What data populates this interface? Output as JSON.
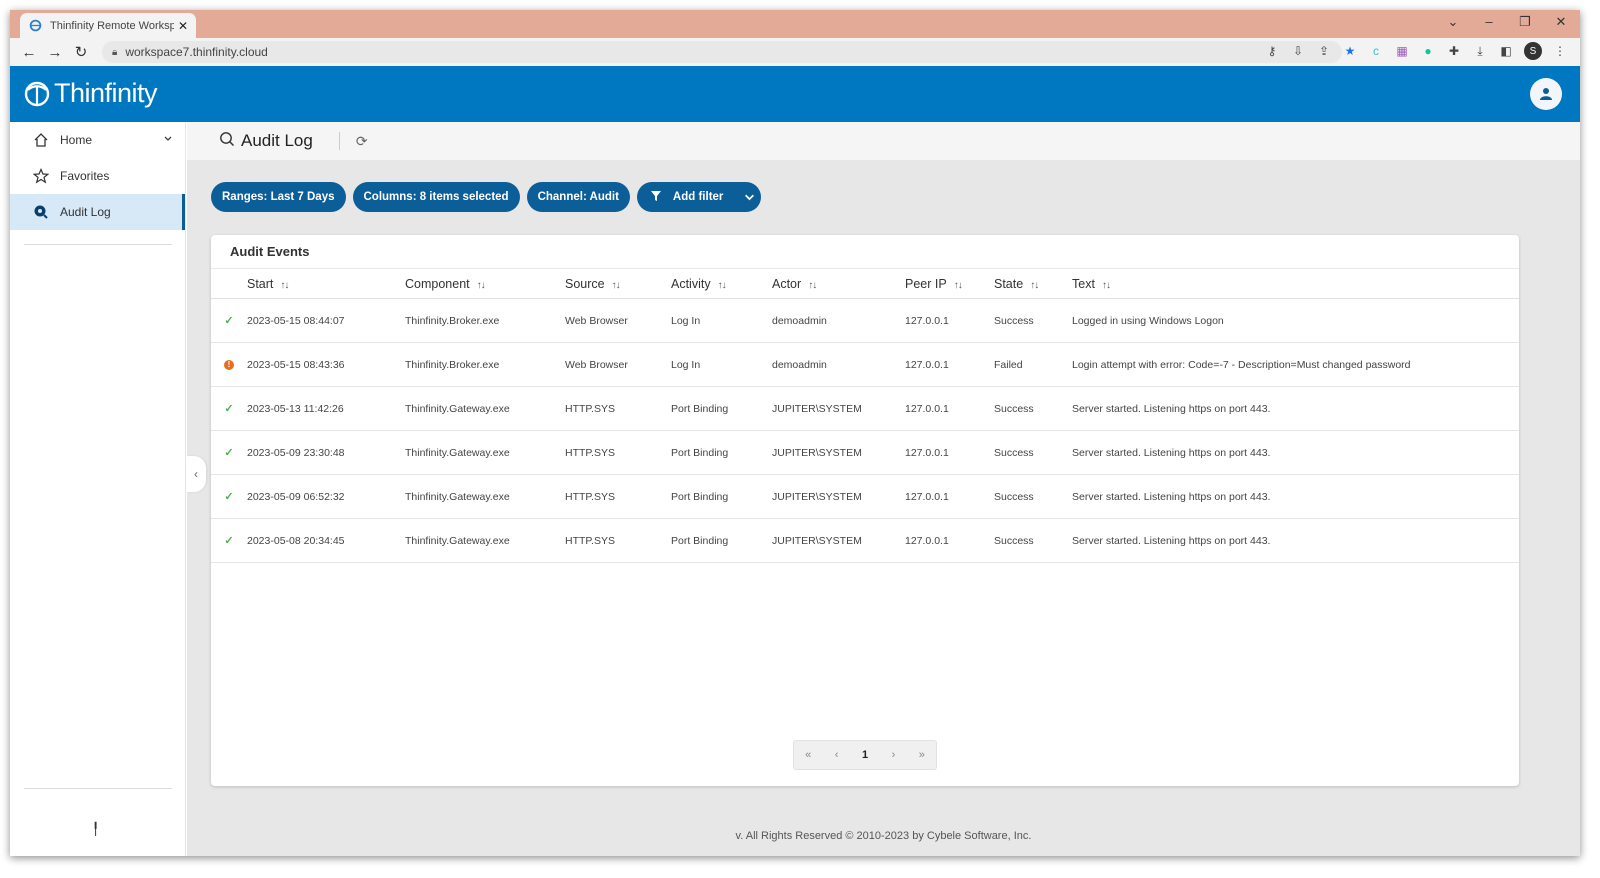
{
  "browser": {
    "tab_title": "Thinfinity Remote Worksp",
    "url": "workspace7.thinfinity.cloud",
    "profile_initial": "S"
  },
  "app": {
    "logo_text": "Thinfinity"
  },
  "sidebar": {
    "items": [
      {
        "label": "Home",
        "icon": "home-icon"
      },
      {
        "label": "Favorites",
        "icon": "star-icon"
      },
      {
        "label": "Audit Log",
        "icon": "audit-icon"
      }
    ]
  },
  "page": {
    "title": "Audit Log"
  },
  "filters": {
    "ranges": "Ranges: Last 7 Days",
    "columns": "Columns: 8 items selected",
    "channel": "Channel: Audit",
    "add_filter": "Add filter"
  },
  "table": {
    "title": "Audit Events",
    "headers": [
      "Start",
      "Component",
      "Source",
      "Activity",
      "Actor",
      "Peer IP",
      "State",
      "Text"
    ],
    "rows": [
      {
        "status": "ok",
        "cells": [
          "2023-05-15 08:44:07",
          "Thinfinity.Broker.exe",
          "Web Browser",
          "Log In",
          "demoadmin",
          "127.0.0.1",
          "Success",
          "Logged in using Windows Logon"
        ]
      },
      {
        "status": "warn",
        "cells": [
          "2023-05-15 08:43:36",
          "Thinfinity.Broker.exe",
          "Web Browser",
          "Log In",
          "demoadmin",
          "127.0.0.1",
          "Failed",
          "Login attempt with error: Code=-7 - Description=Must changed password"
        ]
      },
      {
        "status": "ok",
        "cells": [
          "2023-05-13 11:42:26",
          "Thinfinity.Gateway.exe",
          "HTTP.SYS",
          "Port Binding",
          "JUPITER\\SYSTEM",
          "127.0.0.1",
          "Success",
          "Server started. Listening https on port 443."
        ]
      },
      {
        "status": "ok",
        "cells": [
          "2023-05-09 23:30:48",
          "Thinfinity.Gateway.exe",
          "HTTP.SYS",
          "Port Binding",
          "JUPITER\\SYSTEM",
          "127.0.0.1",
          "Success",
          "Server started. Listening https on port 443."
        ]
      },
      {
        "status": "ok",
        "cells": [
          "2023-05-09 06:52:32",
          "Thinfinity.Gateway.exe",
          "HTTP.SYS",
          "Port Binding",
          "JUPITER\\SYSTEM",
          "127.0.0.1",
          "Success",
          "Server started. Listening https on port 443."
        ]
      },
      {
        "status": "ok",
        "cells": [
          "2023-05-08 20:34:45",
          "Thinfinity.Gateway.exe",
          "HTTP.SYS",
          "Port Binding",
          "JUPITER\\SYSTEM",
          "127.0.0.1",
          "Success",
          "Server started. Listening https on port 443."
        ]
      }
    ]
  },
  "pager": {
    "first": "«",
    "prev": "‹",
    "current": "1",
    "next": "›",
    "last": "»"
  },
  "footer": {
    "text": "v. All Rights Reserved © 2010-2023 by Cybele Software, Inc."
  },
  "colors": {
    "brand": "#0078c1",
    "chip": "#0b5e98",
    "success": "#4caf50",
    "warning": "#e86d1b"
  }
}
